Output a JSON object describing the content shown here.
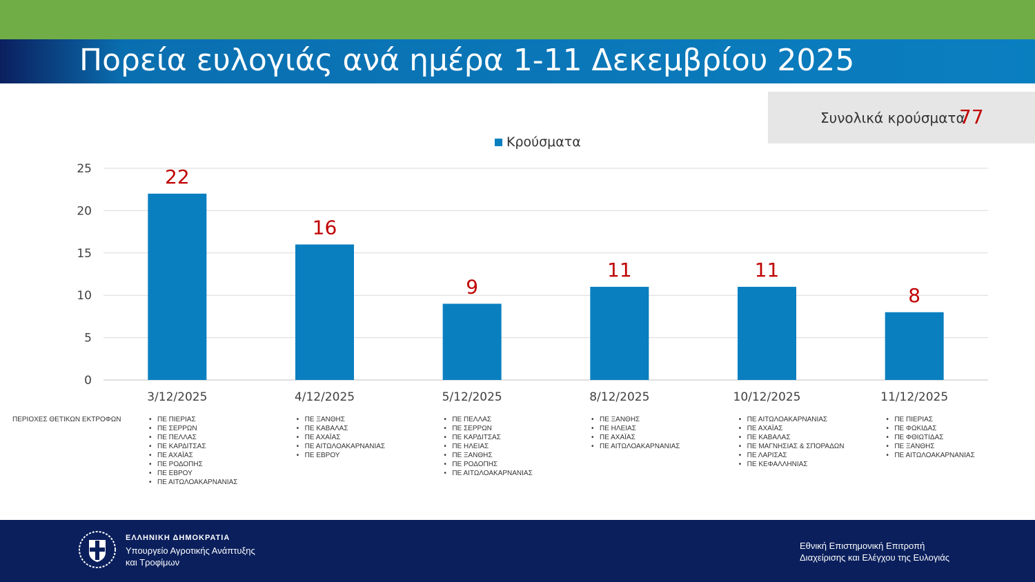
{
  "header": {
    "title": "Πορεία ευλογιάς ανά ημέρα 1-11 Δεκεμβρίου 2025"
  },
  "total": {
    "label": "Συνολικά κρούσματα",
    "value": "77"
  },
  "regions_label": "ΠΕΡΙΟΧΕΣ ΘΕΤΙΚΩΝ ΕΚΤΡΟΦΩΝ",
  "regions": [
    [
      "ΠΕ ΠΙΕΡΙΑΣ",
      "ΠΕ ΣΕΡΡΩΝ",
      "ΠΕ ΠΕΛΛΑΣ",
      "ΠΕ ΚΑΡΔΙΤΣΑΣ",
      "ΠΕ ΑΧΑΪΑΣ",
      "ΠΕ ΡΟΔΟΠΗΣ",
      "ΠΕ ΕΒΡΟΥ",
      "ΠΕ ΑΙΤΩΛΟΑΚΑΡΝΑΝΙΑΣ"
    ],
    [
      "ΠΕ ΞΑΝΘΗΣ",
      "ΠΕ ΚΑΒΑΛΑΣ",
      "ΠΕ ΑΧΑΪΑΣ",
      "ΠΕ ΑΙΤΩΛΟΑΚΑΡΝΑΝΙΑΣ",
      "ΠΕ ΕΒΡΟΥ"
    ],
    [
      "ΠΕ ΠΕΛΛΑΣ",
      "ΠΕ ΣΕΡΡΩΝ",
      "ΠΕ ΚΑΡΔΙΤΣΑΣ",
      "ΠΕ ΗΛΕΙΑΣ",
      "ΠΕ ΞΑΝΘΗΣ",
      "ΠΕ ΡΟΔΟΠΗΣ",
      "ΠΕ ΑΙΤΩΛΟΑΚΑΡΝΑΝΙΑΣ"
    ],
    [
      "ΠΕ ΞΑΝΘΗΣ",
      "ΠΕ ΗΛΕΙΑΣ",
      "ΠΕ ΑΧΑΪΑΣ",
      "ΠΕ ΑΙΤΩΛΟΑΚΑΡΝΑΝΙΑΣ"
    ],
    [
      "ΠΕ ΑΙΤΩΛΟΑΚΑΡΝΑΝΙΑΣ",
      "ΠΕ ΑΧΑΪΑΣ",
      "ΠΕ ΚΑΒΑΛΑΣ",
      "ΠΕ ΜΑΓΝΗΣΙΑΣ & ΣΠΟΡΑΔΩΝ",
      "ΠΕ ΛΑΡΙΣΑΣ",
      "ΠΕ ΚΕΦΑΛΛΗΝΙΑΣ"
    ],
    [
      "ΠΕ ΠΙΕΡΙΑΣ",
      "ΠΕ ΦΩΚΙΔΑΣ",
      "ΠΕ ΦΘΙΩΤΙΔΑΣ",
      "ΠΕ ΞΑΝΘΗΣ",
      "ΠΕ  ΑΙΤΩΛΟΑΚΑΡΝΑΝΙΑΣ"
    ]
  ],
  "footer": {
    "republic": "ΕΛΛΗΝΙΚΗ ΔΗΜΟΚΡΑΤΙΑ",
    "ministry_line1": "Υπουργείο Αγροτικής Ανάπτυξης",
    "ministry_line2": "και Τροφίμων",
    "committee_line1": "Εθνική Επιστημονική Επιτροπή",
    "committee_line2": "Διαχείρισης και Ελέγχου της Ευλογιάς"
  },
  "colors": {
    "bar": "#0a7fc0",
    "data_label": "#c00000",
    "top_bar": "#70ad47",
    "footer": "#0a1f5c"
  },
  "chart_data": {
    "type": "bar",
    "categories": [
      "3/12/2025",
      "4/12/2025",
      "5/12/2025",
      "8/12/2025",
      "10/12/2025",
      "11/12/2025"
    ],
    "series": [
      {
        "name": "Κρούσματα",
        "values": [
          22,
          16,
          9,
          11,
          11,
          8
        ]
      }
    ],
    "ylim": [
      0,
      25
    ],
    "yticks": [
      0,
      5,
      10,
      15,
      20,
      25
    ],
    "grid": true,
    "legend": "top"
  }
}
